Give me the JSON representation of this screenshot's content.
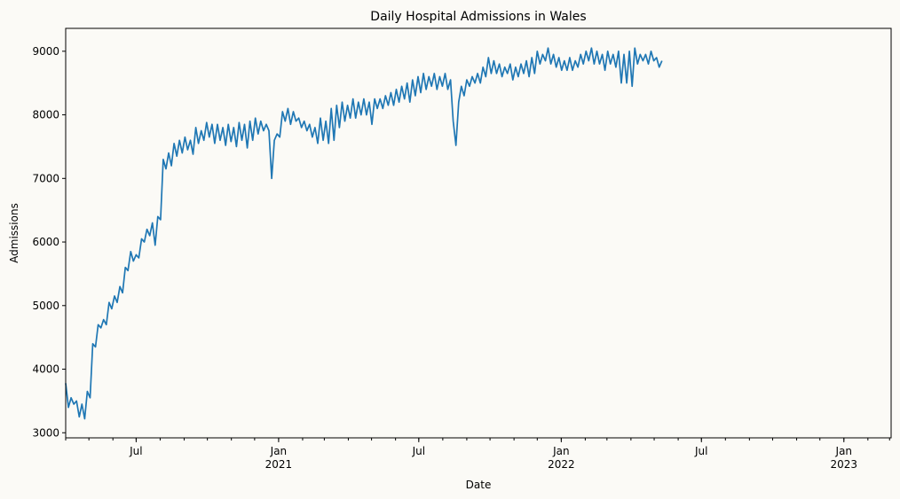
{
  "chart_data": {
    "type": "line",
    "title": "Daily Hospital Admissions in Wales",
    "xlabel": "Date",
    "ylabel": "Admissions",
    "x_range": [
      "2020-04-01",
      "2023-03-03"
    ],
    "ylim": [
      2920,
      9360
    ],
    "grid": false,
    "legend": "none",
    "line_color": "#1f77b4",
    "y_ticks": [
      3000,
      4000,
      5000,
      6000,
      7000,
      8000,
      9000
    ],
    "x_major_ticks": [
      {
        "date": "2020-07-01",
        "label": "Jul",
        "sublabel": ""
      },
      {
        "date": "2021-01-01",
        "label": "Jan",
        "sublabel": "2021"
      },
      {
        "date": "2021-07-01",
        "label": "Jul",
        "sublabel": ""
      },
      {
        "date": "2022-01-01",
        "label": "Jan",
        "sublabel": "2022"
      },
      {
        "date": "2022-07-01",
        "label": "Jul",
        "sublabel": ""
      },
      {
        "date": "2023-01-01",
        "label": "Jan",
        "sublabel": "2023"
      }
    ],
    "series": [
      {
        "name": "Admissions",
        "start_date": "2020-04-01",
        "step_days": 3.5,
        "values": [
          3780,
          3400,
          3550,
          3450,
          3500,
          3250,
          3450,
          3220,
          3650,
          3550,
          4400,
          4350,
          4700,
          4650,
          4780,
          4700,
          5050,
          4950,
          5150,
          5050,
          5300,
          5200,
          5600,
          5550,
          5850,
          5700,
          5800,
          5750,
          6050,
          6000,
          6200,
          6100,
          6300,
          5950,
          6400,
          6350,
          7300,
          7150,
          7400,
          7200,
          7550,
          7350,
          7600,
          7400,
          7650,
          7450,
          7600,
          7380,
          7800,
          7550,
          7750,
          7600,
          7880,
          7650,
          7850,
          7550,
          7850,
          7600,
          7800,
          7520,
          7850,
          7580,
          7800,
          7500,
          7880,
          7600,
          7850,
          7480,
          7900,
          7600,
          7950,
          7700,
          7900,
          7750,
          7850,
          7750,
          7000,
          7600,
          7700,
          7650,
          8050,
          7900,
          8100,
          7850,
          8050,
          7900,
          7950,
          7800,
          7900,
          7750,
          7850,
          7650,
          7800,
          7550,
          7950,
          7600,
          7900,
          7550,
          8100,
          7600,
          8150,
          7800,
          8200,
          7900,
          8150,
          7950,
          8250,
          7950,
          8200,
          8000,
          8250,
          8000,
          8200,
          7850,
          8250,
          8100,
          8250,
          8100,
          8300,
          8150,
          8350,
          8150,
          8400,
          8200,
          8450,
          8250,
          8500,
          8200,
          8550,
          8300,
          8600,
          8350,
          8650,
          8400,
          8600,
          8450,
          8650,
          8400,
          8600,
          8450,
          8650,
          8400,
          8550,
          7900,
          7520,
          8200,
          8450,
          8300,
          8550,
          8450,
          8600,
          8500,
          8650,
          8500,
          8750,
          8600,
          8900,
          8650,
          8850,
          8650,
          8800,
          8600,
          8750,
          8650,
          8800,
          8550,
          8750,
          8600,
          8800,
          8650,
          8850,
          8600,
          8900,
          8650,
          9000,
          8800,
          8950,
          8850,
          9050,
          8800,
          8950,
          8750,
          8900,
          8700,
          8850,
          8700,
          8900,
          8700,
          8850,
          8750,
          8950,
          8800,
          9000,
          8850,
          9050,
          8800,
          9000,
          8800,
          8950,
          8700,
          9000,
          8800,
          8950,
          8750,
          9000,
          8500,
          8950,
          8500,
          9000,
          8450,
          9050,
          8800,
          8950,
          8850,
          8950,
          8800,
          9000,
          8850,
          8900,
          8750,
          8850
        ]
      }
    ]
  }
}
